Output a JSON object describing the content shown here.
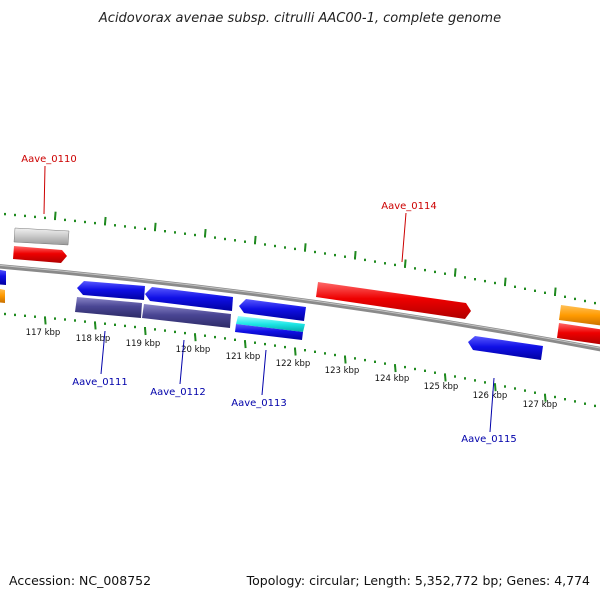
{
  "title": "Acidovorax avenae subsp. citrulli AAC00-1, complete genome",
  "footer": {
    "accession": "Accession: NC_008752",
    "summary": "Topology: circular; Length: 5,352,772 bp; Genes: 4,774"
  },
  "colors": {
    "forward_label": "#cc0000",
    "reverse_label": "#0000aa",
    "backbone": "#8a8a8a",
    "tick": "#1f8a1f"
  },
  "kbp_ticks": [
    "117 kbp",
    "118 kbp",
    "119 kbp",
    "120 kbp",
    "121 kbp",
    "122 kbp",
    "123 kbp",
    "124 kbp",
    "125 kbp",
    "126 kbp",
    "127 kbp"
  ],
  "gene_labels": [
    {
      "id": "Aave_0110",
      "strand": "forward"
    },
    {
      "id": "Aave_0114",
      "strand": "forward"
    },
    {
      "id": "Aave_0111",
      "strand": "reverse"
    },
    {
      "id": "Aave_0112",
      "strand": "reverse"
    },
    {
      "id": "Aave_0113",
      "strand": "reverse"
    },
    {
      "id": "Aave_0115",
      "strand": "reverse"
    }
  ]
}
